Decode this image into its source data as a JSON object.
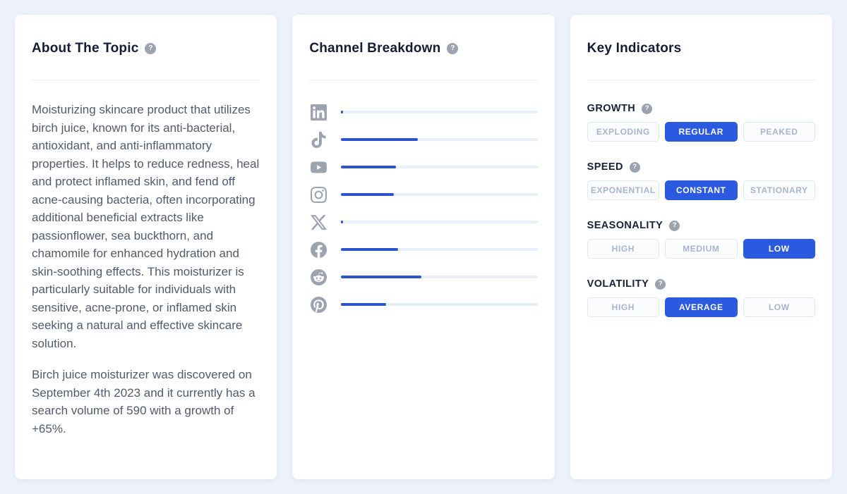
{
  "help_glyph": "?",
  "colors": {
    "page_background": "#EDF2FA",
    "card_background": "#FFFFFF",
    "accent_blue": "#2B59E0",
    "bar_blue": "#2C53CD",
    "bar_track": "#E9EFF9",
    "icon_gray": "#9CA3AF"
  },
  "about_card": {
    "title": "About The Topic",
    "paragraphs": [
      "Moisturizing skincare product that utilizes birch juice, known for its anti-bacterial, antioxidant, and anti-inflammatory properties. It helps to reduce redness, heal and protect inflamed skin, and fend off acne-causing bacteria, often incorporating additional beneficial extracts like passionflower, sea buckthorn, and chamomile for enhanced hydration and skin-soothing effects. This moisturizer is particularly suitable for individuals with sensitive, acne-prone, or inflamed skin seeking a natural and effective skincare solution.",
      "Birch juice moisturizer was discovered on September 4th 2023 and it currently has a search volume of 590 with a growth of +65%."
    ]
  },
  "channel_card": {
    "title": "Channel Breakdown",
    "rows": [
      {
        "icon": "linkedin-icon",
        "percent": 1
      },
      {
        "icon": "tiktok-icon",
        "percent": 39
      },
      {
        "icon": "youtube-icon",
        "percent": 28
      },
      {
        "icon": "instagram-icon",
        "percent": 27
      },
      {
        "icon": "x-icon",
        "percent": 1
      },
      {
        "icon": "facebook-icon",
        "percent": 29
      },
      {
        "icon": "reddit-icon",
        "percent": 41
      },
      {
        "icon": "pinterest-icon",
        "percent": 23
      }
    ]
  },
  "indicators_card": {
    "title": "Key Indicators",
    "groups": [
      {
        "label": "GROWTH",
        "options": [
          "EXPLODING",
          "REGULAR",
          "PEAKED"
        ],
        "selected": "REGULAR"
      },
      {
        "label": "SPEED",
        "options": [
          "EXPONENTIAL",
          "CONSTANT",
          "STATIONARY"
        ],
        "selected": "CONSTANT"
      },
      {
        "label": "SEASONALITY",
        "options": [
          "HIGH",
          "MEDIUM",
          "LOW"
        ],
        "selected": "LOW"
      },
      {
        "label": "VOLATILITY",
        "options": [
          "HIGH",
          "AVERAGE",
          "LOW"
        ],
        "selected": "AVERAGE"
      }
    ]
  }
}
